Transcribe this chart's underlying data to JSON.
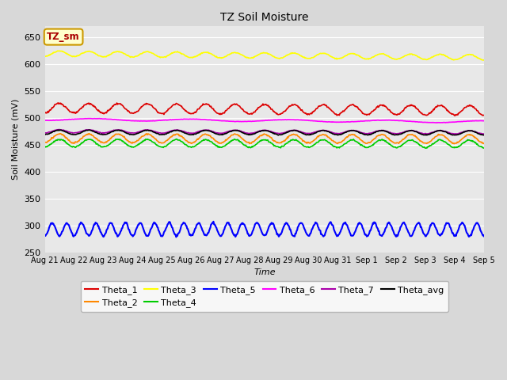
{
  "title": "TZ Soil Moisture",
  "ylabel": "Soil Moisture (mV)",
  "xlabel": "Time",
  "ylim": [
    250,
    670
  ],
  "yticks": [
    250,
    300,
    350,
    400,
    450,
    500,
    550,
    600,
    650
  ],
  "n_days": 15,
  "n_pts_per_day": 48,
  "date_labels": [
    "Aug 21",
    "Aug 22",
    "Aug 23",
    "Aug 24",
    "Aug 25",
    "Aug 26",
    "Aug 27",
    "Aug 28",
    "Aug 29",
    "Aug 30",
    "Aug 31",
    "Sep 1",
    "Sep 2",
    "Sep 3",
    "Sep 4",
    "Sep 5"
  ],
  "series_order": [
    "Theta_1",
    "Theta_2",
    "Theta_3",
    "Theta_4",
    "Theta_5",
    "Theta_6",
    "Theta_7",
    "Theta_avg"
  ],
  "series": {
    "Theta_1": {
      "color": "#dd0000",
      "base": 518,
      "amp": 9,
      "trend": -4.5,
      "freq": 1.0,
      "lw": 1.2
    },
    "Theta_2": {
      "color": "#ff8800",
      "base": 462,
      "amp": 8,
      "trend": -1.5,
      "freq": 1.0,
      "lw": 1.2
    },
    "Theta_3": {
      "color": "#ffff00",
      "base": 619,
      "amp": 5,
      "trend": -7.0,
      "freq": 1.0,
      "lw": 1.2
    },
    "Theta_4": {
      "color": "#00cc00",
      "base": 453,
      "amp": 7,
      "trend": -1.5,
      "freq": 1.0,
      "lw": 1.2
    },
    "Theta_5": {
      "color": "#0000ff",
      "base": 293,
      "amp": 12,
      "trend": 0.0,
      "freq": 2.0,
      "lw": 1.5
    },
    "Theta_6": {
      "color": "#ff00ff",
      "base": 497,
      "amp": 2,
      "trend": -4.5,
      "freq": 0.3,
      "lw": 1.2
    },
    "Theta_7": {
      "color": "#aa00aa",
      "base": 475,
      "amp": 3,
      "trend": -2.0,
      "freq": 1.0,
      "lw": 1.2
    },
    "Theta_avg": {
      "color": "#000000",
      "base": 473,
      "amp": 4,
      "trend": -1.0,
      "freq": 1.0,
      "lw": 1.2
    }
  },
  "legend_text_color": "#aa0000",
  "legend_box_facecolor": "#ffffcc",
  "legend_box_edgecolor": "#cc9900",
  "fig_facecolor": "#d8d8d8",
  "axes_facecolor": "#e8e8e8",
  "grid_color": "#ffffff",
  "legend_ncol_row1": 6,
  "legend_order_row1": [
    "Theta_1",
    "Theta_2",
    "Theta_3",
    "Theta_4",
    "Theta_5",
    "Theta_6"
  ],
  "legend_order_row2": [
    "Theta_7",
    "Theta_avg"
  ]
}
